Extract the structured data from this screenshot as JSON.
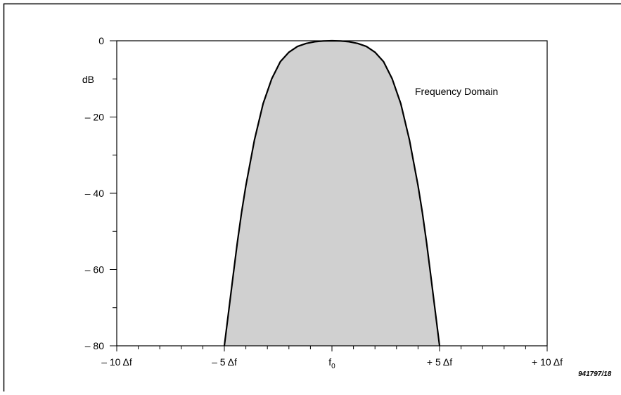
{
  "figure_id": "941797/18",
  "chart_data": {
    "type": "area",
    "title": "",
    "xlabel": "",
    "ylabel": "dB",
    "annotation": "Frequency Domain",
    "xlim": [
      -10,
      10
    ],
    "ylim": [
      -80,
      0
    ],
    "x_ticks": [
      {
        "value": -10,
        "label": "– 10 Δf"
      },
      {
        "value": -5,
        "label": "– 5 Δf"
      },
      {
        "value": 0,
        "label": "f0",
        "subscript": "0",
        "base": "f"
      },
      {
        "value": 5,
        "label": "+ 5 Δf"
      },
      {
        "value": 10,
        "label": "+ 10 Δf"
      }
    ],
    "x_minor_step": 1,
    "y_ticks": [
      {
        "value": 0,
        "label": "0"
      },
      {
        "value": -20,
        "label": "– 20"
      },
      {
        "value": -40,
        "label": "– 40"
      },
      {
        "value": -60,
        "label": "– 60"
      },
      {
        "value": -80,
        "label": "– 80"
      }
    ],
    "y_minor_step": 10,
    "grid": false,
    "series": [
      {
        "fill": "#d0d0d0",
        "stroke": "#000000",
        "x": [
          -5,
          -4.8,
          -4.6,
          -4.4,
          -4.2,
          -4.0,
          -3.6,
          -3.2,
          -2.8,
          -2.4,
          -2.0,
          -1.6,
          -1.2,
          -0.8,
          -0.4,
          0,
          0.4,
          0.8,
          1.2,
          1.6,
          2.0,
          2.4,
          2.8,
          3.2,
          3.6,
          4.0,
          4.2,
          4.4,
          4.6,
          4.8,
          5
        ],
        "y": [
          -80,
          -71,
          -62,
          -53,
          -45,
          -38,
          -26,
          -16.5,
          -10,
          -5.5,
          -3,
          -1.5,
          -0.7,
          -0.25,
          -0.05,
          0,
          -0.05,
          -0.25,
          -0.7,
          -1.5,
          -3,
          -5.5,
          -10,
          -16.5,
          -26,
          -38,
          -45,
          -53,
          -62,
          -71,
          -80
        ]
      }
    ]
  }
}
